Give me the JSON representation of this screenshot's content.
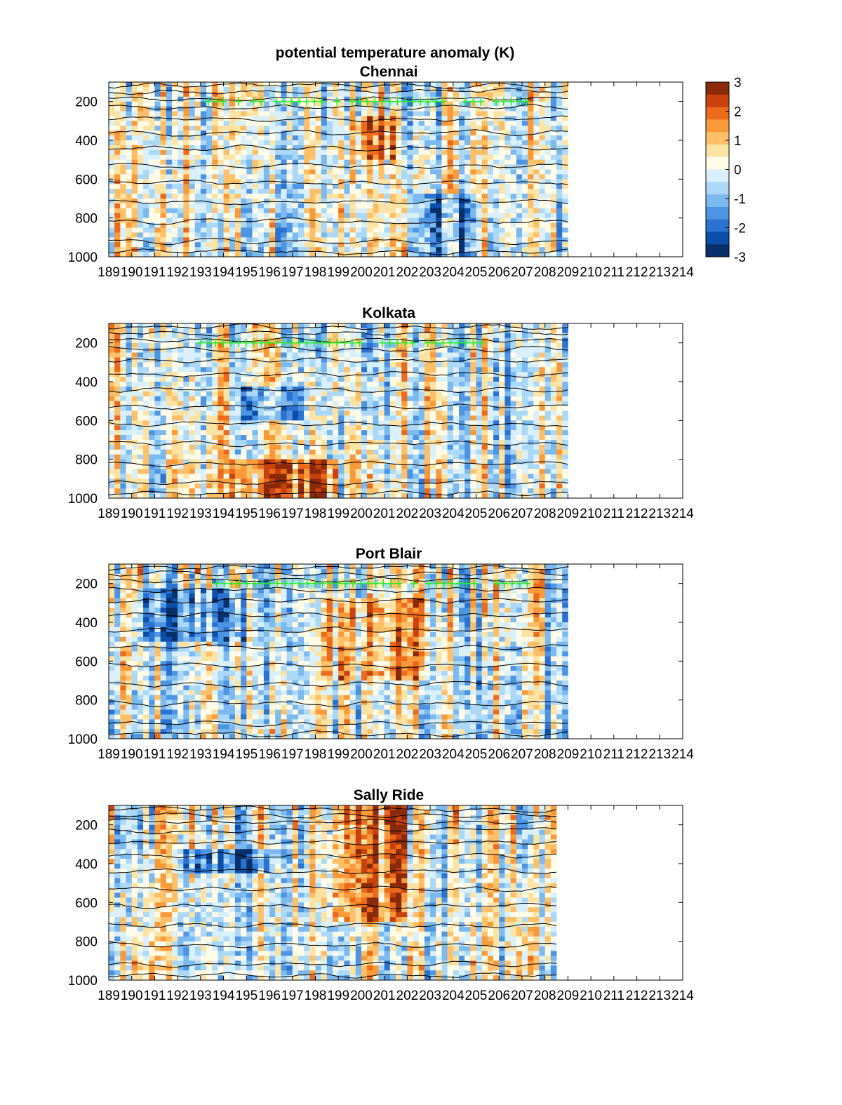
{
  "figure_title": "potential temperature anomaly (K)",
  "colorbar": {
    "ticks": [
      "3",
      "2",
      "1",
      "0",
      "-1",
      "-2",
      "-3"
    ],
    "range": [
      -3,
      3
    ],
    "colors": [
      "#08306b",
      "#0b4fa8",
      "#2c72d1",
      "#4d94e3",
      "#7cb9ef",
      "#aad8f6",
      "#d9f0fb",
      "#fffbe6",
      "#fde3a3",
      "#fdbf68",
      "#f99a3a",
      "#ec6a1b",
      "#c9420e",
      "#8a2a0a"
    ]
  },
  "chart_data": [
    {
      "type": "heatmap",
      "title": "Chennai",
      "xlabel": "",
      "ylabel": "",
      "x_tick_labels": [
        "189",
        "190",
        "191",
        "192",
        "193",
        "194",
        "195",
        "196",
        "197",
        "198",
        "199",
        "200",
        "201",
        "202",
        "203",
        "204",
        "205",
        "206",
        "207",
        "208",
        "209",
        "210",
        "211",
        "212",
        "213",
        "214"
      ],
      "xlim": [
        189,
        214
      ],
      "data_xrange": [
        189,
        209
      ],
      "y_tick_labels": [
        "200",
        "400",
        "600",
        "800",
        "1000"
      ],
      "ylim": [
        100,
        1000
      ],
      "y_reversed": true,
      "marker_row_y": 200,
      "marker_xrange": [
        193,
        207.5
      ],
      "marker_color": "#22ee22"
    },
    {
      "type": "heatmap",
      "title": "Kolkata",
      "xlabel": "",
      "ylabel": "",
      "x_tick_labels": [
        "189",
        "190",
        "191",
        "192",
        "193",
        "194",
        "195",
        "196",
        "197",
        "198",
        "199",
        "200",
        "201",
        "202",
        "203",
        "204",
        "205",
        "206",
        "207",
        "208",
        "209",
        "210",
        "211",
        "212",
        "213",
        "214"
      ],
      "xlim": [
        189,
        214
      ],
      "data_xrange": [
        189,
        209
      ],
      "y_tick_labels": [
        "200",
        "400",
        "600",
        "800",
        "1000"
      ],
      "ylim": [
        100,
        1000
      ],
      "y_reversed": true,
      "marker_row_y": 200,
      "marker_xrange": [
        193,
        205.3
      ],
      "marker_color": "#22ee22"
    },
    {
      "type": "heatmap",
      "title": "Port Blair",
      "xlabel": "",
      "ylabel": "",
      "x_tick_labels": [
        "189",
        "190",
        "191",
        "192",
        "193",
        "194",
        "195",
        "196",
        "197",
        "198",
        "199",
        "200",
        "201",
        "202",
        "203",
        "204",
        "205",
        "206",
        "207",
        "208",
        "209",
        "210",
        "211",
        "212",
        "213",
        "214"
      ],
      "xlim": [
        189,
        214
      ],
      "data_xrange": [
        189,
        209
      ],
      "y_tick_labels": [
        "200",
        "400",
        "600",
        "800",
        "1000"
      ],
      "ylim": [
        100,
        1000
      ],
      "y_reversed": true,
      "marker_row_y": 200,
      "marker_xrange": [
        193.7,
        207.3
      ],
      "marker_color": "#22ee22"
    },
    {
      "type": "heatmap",
      "title": "Sally Ride",
      "xlabel": "",
      "ylabel": "",
      "x_tick_labels": [
        "189",
        "190",
        "191",
        "192",
        "193",
        "194",
        "195",
        "196",
        "197",
        "198",
        "199",
        "200",
        "201",
        "202",
        "203",
        "204",
        "205",
        "206",
        "207",
        "208",
        "209",
        "210",
        "211",
        "212",
        "213",
        "214"
      ],
      "xlim": [
        189,
        214
      ],
      "data_xrange": [
        189,
        208.5
      ],
      "y_tick_labels": [
        "200",
        "400",
        "600",
        "800",
        "1000"
      ],
      "ylim": [
        100,
        1000
      ],
      "y_reversed": true,
      "marker_row_y": null,
      "marker_xrange": null,
      "marker_color": "#22ee22"
    }
  ]
}
